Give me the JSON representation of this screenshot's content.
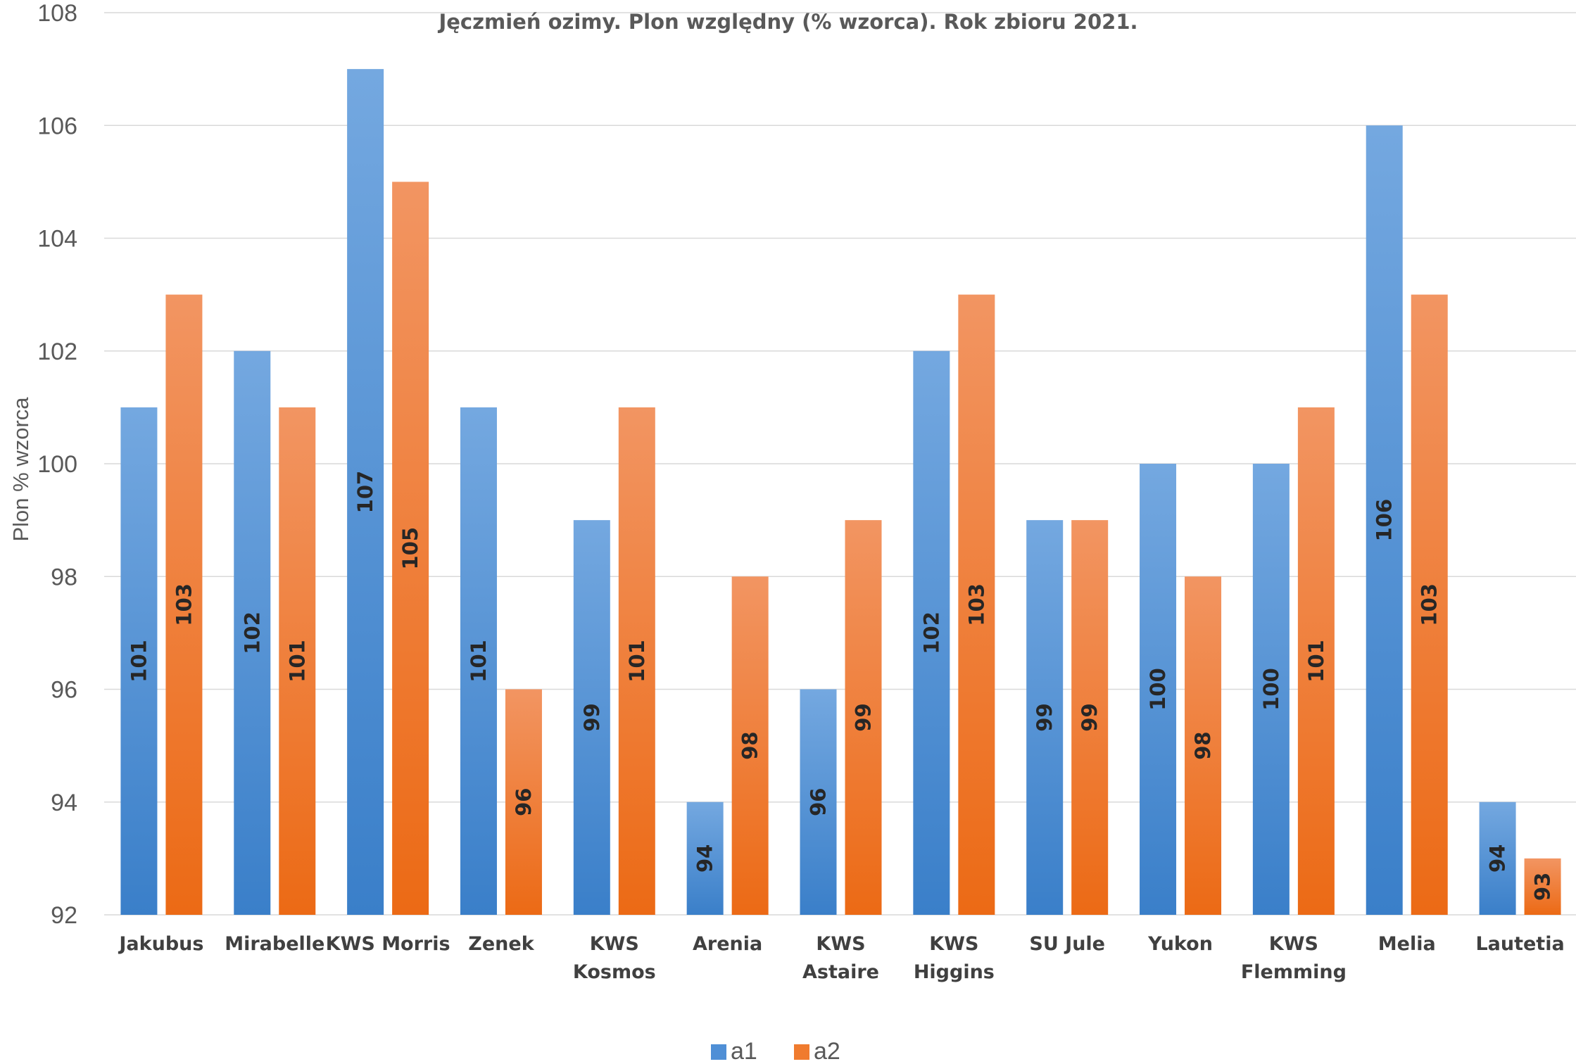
{
  "chart_data": {
    "type": "bar",
    "title": "Jęczmień ozimy. Plon względny (% wzorca). Rok zbioru 2021.",
    "xlabel": "",
    "ylabel": "Plon % wzorca",
    "ylim": [
      92,
      108
    ],
    "yticks": [
      92,
      94,
      96,
      98,
      100,
      102,
      104,
      106,
      108
    ],
    "grid": true,
    "legend_position": "bottom",
    "categories": [
      [
        "Jakubus"
      ],
      [
        "Mirabelle"
      ],
      [
        "KWS Morris"
      ],
      [
        "Zenek"
      ],
      [
        "KWS",
        "Kosmos"
      ],
      [
        "Arenia"
      ],
      [
        "KWS",
        "Astaire"
      ],
      [
        "KWS",
        "Higgins"
      ],
      [
        "SU Jule"
      ],
      [
        "Yukon"
      ],
      [
        "KWS",
        "Flemming"
      ],
      [
        "Melia"
      ],
      [
        "Lautetia"
      ]
    ],
    "series": [
      {
        "name": "a1",
        "color": "#4f8fd6",
        "values": [
          101,
          102,
          107,
          101,
          99,
          94,
          96,
          102,
          99,
          100,
          100,
          106,
          94
        ]
      },
      {
        "name": "a2",
        "color": "#f07b2e",
        "values": [
          103,
          101,
          105,
          96,
          101,
          98,
          99,
          103,
          99,
          98,
          101,
          103,
          93
        ]
      }
    ]
  }
}
